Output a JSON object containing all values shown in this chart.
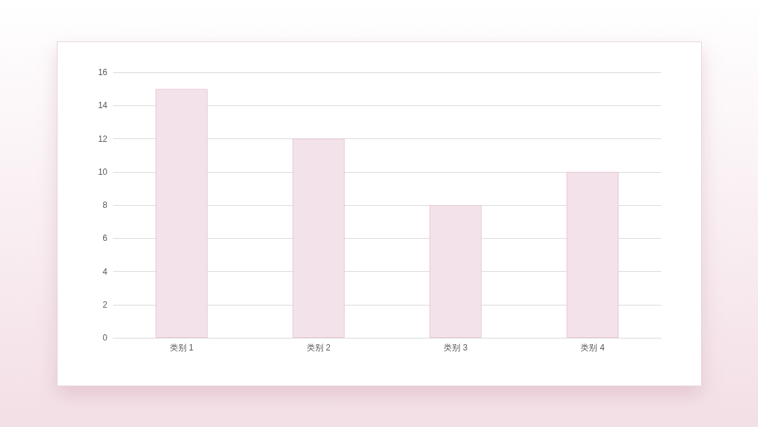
{
  "chart_data": {
    "type": "bar",
    "categories": [
      "类别 1",
      "类别 2",
      "类别 3",
      "类别 4"
    ],
    "values": [
      15,
      12,
      8,
      10
    ],
    "color": "#f4e2eb",
    "ylim": [
      0,
      16
    ],
    "yticks": [
      0,
      2,
      4,
      6,
      8,
      10,
      12,
      14,
      16
    ],
    "grid": "y"
  }
}
